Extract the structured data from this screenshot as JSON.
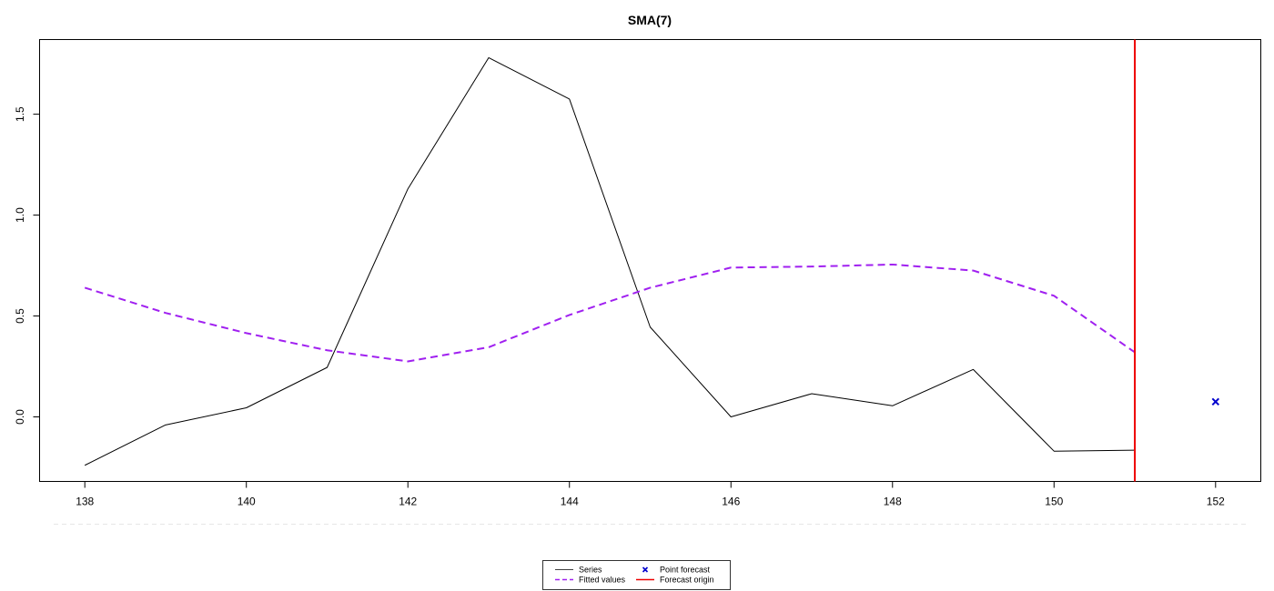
{
  "chart_data": {
    "type": "line",
    "title": "SMA(7)",
    "xlabel": "",
    "ylabel": "",
    "xlim": [
      137.44,
      152.56
    ],
    "ylim": [
      -0.32,
      1.87
    ],
    "x_ticks": [
      138,
      140,
      142,
      144,
      146,
      148,
      150,
      152
    ],
    "y_ticks": [
      0.0,
      0.5,
      1.0,
      1.5
    ],
    "series": [
      {
        "name": "Series",
        "style": "solid",
        "color": "#000000",
        "x": [
          138,
          139,
          140,
          141,
          142,
          143,
          144,
          145,
          146,
          147,
          148,
          149,
          150,
          151
        ],
        "y": [
          -0.24,
          -0.04,
          0.045,
          0.245,
          1.13,
          1.78,
          1.575,
          0.445,
          0.0,
          0.115,
          0.055,
          0.235,
          -0.17,
          -0.165
        ]
      },
      {
        "name": "Fitted values",
        "style": "dashed",
        "color": "#a020f0",
        "x": [
          138,
          139,
          140,
          141,
          142,
          143,
          144,
          145,
          146,
          147,
          148,
          149,
          150,
          151
        ],
        "y": [
          0.64,
          0.515,
          0.415,
          0.33,
          0.275,
          0.345,
          0.505,
          0.64,
          0.74,
          0.745,
          0.755,
          0.725,
          0.6,
          0.32
        ]
      },
      {
        "name": "Point forecast",
        "style": "point",
        "color": "#0000cd",
        "x": [
          152
        ],
        "y": [
          0.075
        ]
      }
    ],
    "forecast_origin": {
      "name": "Forecast origin",
      "x": 151,
      "color": "#ee0000"
    },
    "grid": false,
    "legend_position": "bottom",
    "legend": [
      {
        "label": "Series",
        "kind": "line-solid",
        "color": "#000000"
      },
      {
        "label": "Point forecast",
        "kind": "cross",
        "color": "#0000cd"
      },
      {
        "label": "Fitted values",
        "kind": "line-dashed",
        "color": "#a020f0"
      },
      {
        "label": "Forecast origin",
        "kind": "line-solid",
        "color": "#ee0000"
      }
    ]
  }
}
